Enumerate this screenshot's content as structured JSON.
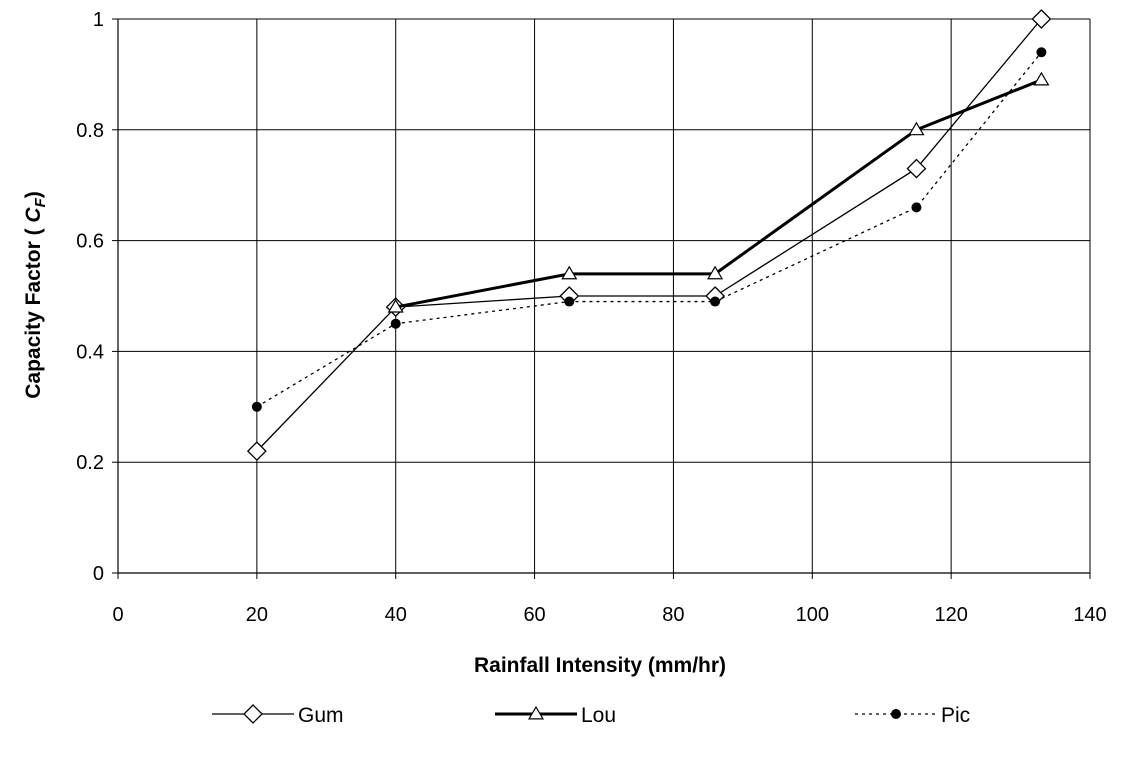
{
  "chart_data": {
    "type": "line",
    "xlabel": "Rainfall Intensity (mm/hr)",
    "ylabel_main": "Capacity Factor ( ",
    "ylabel_sym": "C",
    "ylabel_sub": "F",
    "ylabel_close": ")",
    "xlim": [
      0,
      140
    ],
    "ylim": [
      0,
      1
    ],
    "x_ticks": [
      0,
      20,
      40,
      60,
      80,
      100,
      120,
      140
    ],
    "y_ticks": [
      0,
      0.2,
      0.4,
      0.6,
      0.8,
      1
    ],
    "x_tick_labels": [
      "0",
      "20",
      "40",
      "60",
      "80",
      "100",
      "120",
      "140"
    ],
    "y_tick_labels": [
      "0",
      "0.2",
      "0.4",
      "0.6",
      "0.8",
      "1"
    ],
    "grid": true,
    "legend_position": "bottom",
    "series": [
      {
        "name": "Gum",
        "marker": "diamond-open",
        "line": "solid-thin",
        "x": [
          20,
          40,
          65,
          86,
          115,
          133
        ],
        "y": [
          0.22,
          0.48,
          0.5,
          0.5,
          0.73,
          1.0
        ]
      },
      {
        "name": "Lou",
        "marker": "triangle-open",
        "line": "solid-thick",
        "x": [
          40,
          65,
          86,
          115,
          133
        ],
        "y": [
          0.48,
          0.54,
          0.54,
          0.8,
          0.89
        ]
      },
      {
        "name": "Pic",
        "marker": "circle-filled",
        "line": "dotted",
        "x": [
          20,
          40,
          65,
          86,
          115,
          133
        ],
        "y": [
          0.3,
          0.45,
          0.49,
          0.49,
          0.66,
          0.94
        ]
      }
    ],
    "colors": {
      "line": "#000000",
      "grid": "#000000",
      "background": "#ffffff"
    }
  }
}
